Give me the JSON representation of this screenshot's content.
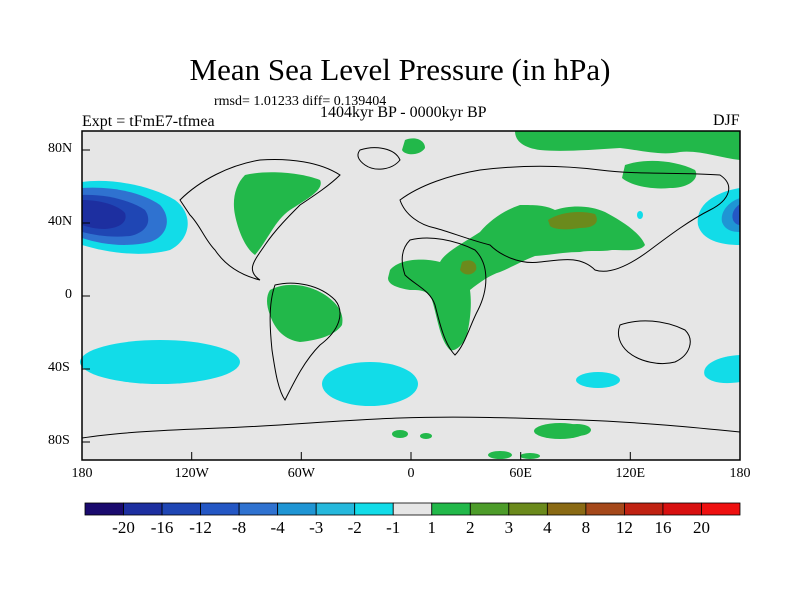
{
  "title": "Mean Sea Level Pressure (in hPa)",
  "stats": "rmsd= 1.01233 diff= 0.139404",
  "period": "1404kyr BP - 0000kyr BP",
  "experiment": "Expt = tFmE7-tfmea",
  "season": "DJF",
  "lon_ticks": [
    "180",
    "120W",
    "60W",
    "0",
    "60E",
    "120E",
    "180"
  ],
  "lat_ticks": [
    "80N",
    "40N",
    "0",
    "40S",
    "80S"
  ],
  "colorbar": {
    "labels": [
      "-20",
      "-16",
      "-12",
      "-8",
      "-4",
      "-3",
      "-2",
      "-1",
      "1",
      "2",
      "3",
      "4",
      "8",
      "12",
      "16",
      "20"
    ],
    "colors": [
      "#1a0a6e",
      "#1d2fa0",
      "#1f46b4",
      "#2457c4",
      "#2f72d0",
      "#1f95d4",
      "#25b8dc",
      "#12dce8",
      "#e6e6e6",
      "#22b84a",
      "#4d9c2a",
      "#6b8a1c",
      "#8a6a14",
      "#a5481a",
      "#c02212",
      "#d81010",
      "#ee1010"
    ]
  }
}
